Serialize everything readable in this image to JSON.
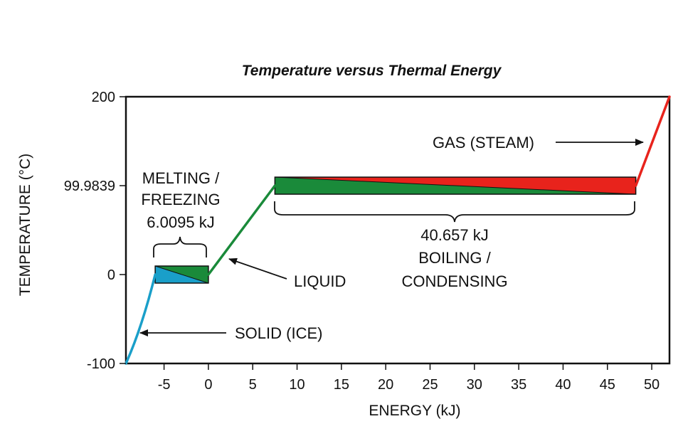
{
  "chart_data": {
    "type": "line",
    "title": "Temperature versus Thermal Energy",
    "xlabel": "ENERGY (kJ)",
    "ylabel": "TEMPERATURE (°C)",
    "xlim": [
      -9.3,
      52
    ],
    "ylim": [
      -100,
      200
    ],
    "x_ticks": [
      -5,
      0,
      5,
      10,
      15,
      20,
      25,
      30,
      35,
      40,
      45,
      50
    ],
    "y_ticks": [
      {
        "value": -100,
        "label": "-100"
      },
      {
        "value": 0,
        "label": "0"
      },
      {
        "value": 99.9839,
        "label": "99.9839"
      },
      {
        "value": 200,
        "label": "200"
      }
    ],
    "grid": false,
    "series": [
      {
        "key": "solid",
        "color": "#1a9fc9",
        "points": [
          [
            -9.3,
            -100
          ],
          [
            -7.5,
            -60
          ],
          [
            -6,
            0
          ]
        ]
      },
      {
        "key": "liquid",
        "color": "#1a8a3a",
        "points": [
          [
            0,
            0
          ],
          [
            7.5,
            99.9839
          ]
        ]
      },
      {
        "key": "gas",
        "color": "#e8231c",
        "points": [
          [
            48.2,
            99.9839
          ],
          [
            52,
            200
          ]
        ]
      }
    ],
    "phase_boxes": [
      {
        "key": "melting",
        "x0": -6,
        "x1": 0,
        "y": 0,
        "colors": [
          "#1a9fc9",
          "#1a8a3a"
        ]
      },
      {
        "key": "boiling",
        "x0": 7.5,
        "x1": 48.2,
        "y": 99.9839,
        "colors": [
          "#1a8a3a",
          "#e8231c"
        ]
      }
    ],
    "annotations": {
      "gas": "GAS (STEAM)",
      "melting_line1": "MELTING /",
      "melting_line2": "FREEZING",
      "melting_energy": "6.0095 kJ",
      "liquid": "LIQUID",
      "solid": "SOLID (ICE)",
      "boiling_energy": "40.657 kJ",
      "boiling_line1": "BOILING /",
      "boiling_line2": "CONDENSING"
    }
  }
}
